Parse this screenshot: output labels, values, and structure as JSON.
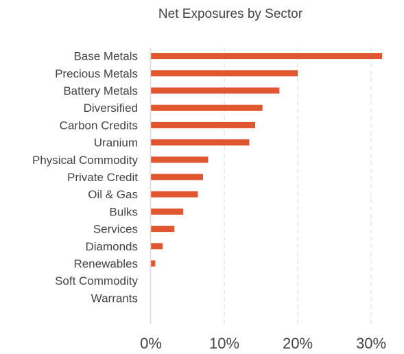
{
  "chart_data": {
    "type": "bar",
    "orientation": "horizontal",
    "title": "Net Exposures by Sector",
    "xlabel": "",
    "ylabel": "",
    "categories": [
      "Base Metals",
      "Precious Metals",
      "Battery Metals",
      "Diversified",
      "Carbon Credits",
      "Uranium",
      "Physical Commodity",
      "Private Credit",
      "Oil & Gas",
      "Bulks",
      "Services",
      "Diamonds",
      "Renewables",
      "Soft Commodity",
      "Warrants"
    ],
    "values": [
      31.5,
      20.0,
      17.5,
      15.2,
      14.2,
      13.4,
      7.8,
      7.1,
      6.4,
      4.4,
      3.2,
      1.6,
      0.6,
      0.0,
      0.0
    ],
    "unit": "%",
    "xlim": [
      0,
      32
    ],
    "xticks": [
      0,
      10,
      20,
      30
    ],
    "xtick_labels": [
      "0%",
      "10%",
      "20%",
      "30%"
    ],
    "grid": "vertical dashed",
    "legend": "none",
    "bar_color": "#e0562f"
  }
}
